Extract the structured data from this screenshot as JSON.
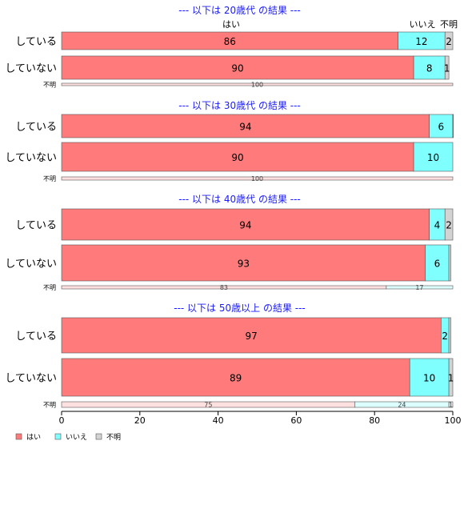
{
  "chart_data": {
    "type": "bar",
    "orientation": "horizontal",
    "stacked": true,
    "percent": true,
    "xlim": [
      0,
      100
    ],
    "xticks": [
      0,
      20,
      40,
      60,
      80,
      100
    ],
    "series": [
      {
        "name": "はい",
        "color": "#ff7a7a"
      },
      {
        "name": "いいえ",
        "color": "#80ffff"
      },
      {
        "name": "不明",
        "color": "#d3d3d3"
      }
    ],
    "header_labels": [
      "はい",
      "いいえ",
      "不明"
    ],
    "legend_position": "bottom-left",
    "panels": [
      {
        "title": "--- 以下は 20歳代 の結果 ---",
        "rows": [
          {
            "category": "している",
            "values": [
              86,
              12,
              2
            ],
            "labels": [
              "86",
              "12",
              "2"
            ]
          },
          {
            "category": "していない",
            "values": [
              90,
              8,
              1
            ],
            "labels": [
              "90",
              "8",
              "1"
            ]
          },
          {
            "category": "不明",
            "values": [
              100,
              0,
              0
            ],
            "labels": [
              "100",
              "",
              ""
            ],
            "small": true
          }
        ]
      },
      {
        "title": "--- 以下は 30歳代 の結果 ---",
        "rows": [
          {
            "category": "している",
            "values": [
              94,
              6,
              0.5
            ],
            "labels": [
              "94",
              "6",
              ""
            ]
          },
          {
            "category": "していない",
            "values": [
              90,
              10,
              0
            ],
            "labels": [
              "90",
              "10",
              ""
            ]
          },
          {
            "category": "不明",
            "values": [
              100,
              0,
              0
            ],
            "labels": [
              "100",
              "",
              ""
            ],
            "small": true
          }
        ]
      },
      {
        "title": "--- 以下は 40歳代 の結果 ---",
        "rows": [
          {
            "category": "している",
            "values": [
              94,
              4,
              2
            ],
            "labels": [
              "94",
              "4",
              "2"
            ]
          },
          {
            "category": "していない",
            "values": [
              93,
              6,
              0.5
            ],
            "labels": [
              "93",
              "6",
              ""
            ]
          },
          {
            "category": "不明",
            "values": [
              83,
              17,
              0
            ],
            "labels": [
              "83",
              "17",
              ""
            ],
            "small": true
          }
        ]
      },
      {
        "title": "--- 以下は 50歳以上 の結果 ---",
        "rows": [
          {
            "category": "している",
            "values": [
              97,
              2,
              0.5
            ],
            "labels": [
              "97",
              "2",
              ""
            ]
          },
          {
            "category": "していない",
            "values": [
              89,
              10,
              1
            ],
            "labels": [
              "89",
              "10",
              "1"
            ]
          },
          {
            "category": "不明",
            "values": [
              75,
              24,
              1
            ],
            "labels": [
              "75",
              "24",
              "1"
            ],
            "small": true
          }
        ]
      }
    ]
  }
}
